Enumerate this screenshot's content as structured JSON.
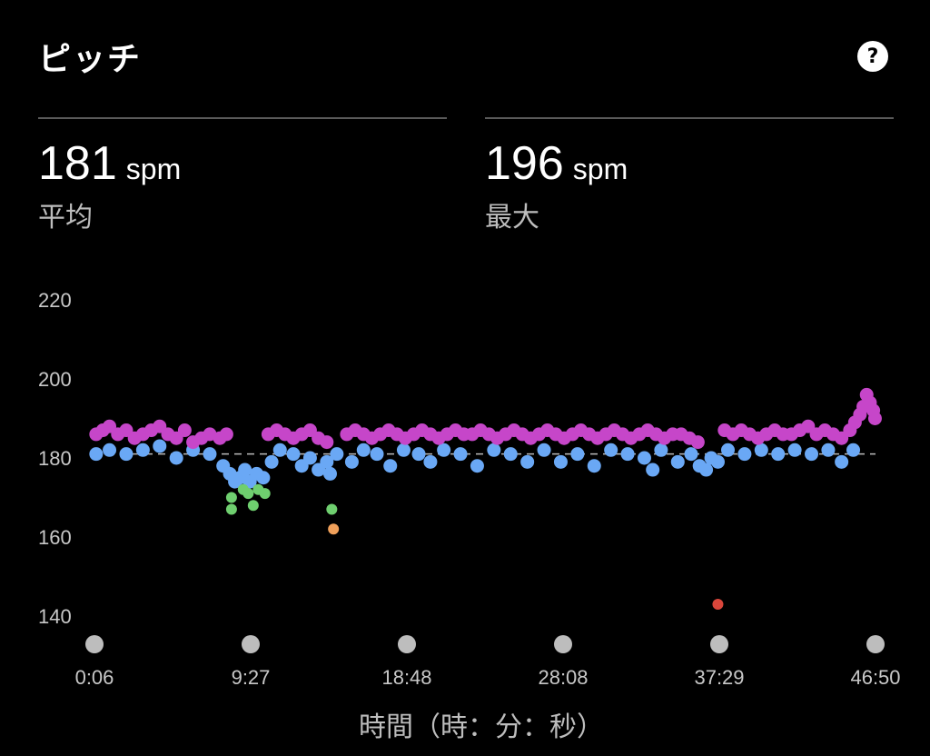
{
  "header": {
    "title": "ピッチ",
    "help_icon": "question-circle-icon",
    "help_label": "?"
  },
  "stats": [
    {
      "value": "181",
      "unit": "spm",
      "label": "平均"
    },
    {
      "value": "196",
      "unit": "spm",
      "label": "最大"
    }
  ],
  "chart_data": {
    "type": "scatter",
    "title": "",
    "xlabel": "時間（時：分：秒）",
    "ylabel": "",
    "y_ticks": [
      140,
      160,
      180,
      200,
      220
    ],
    "ylim": [
      136,
      224
    ],
    "x_ticks": [
      "0:06",
      "9:27",
      "18:48",
      "28:08",
      "37:29",
      "46:50"
    ],
    "xlim_minutes": [
      0.1,
      46.83
    ],
    "average_line": 181,
    "grid": false,
    "legend": "none",
    "colors": {
      "magenta": "#c646c9",
      "blue": "#6aa8f5",
      "green": "#6fcf6f",
      "orange": "#f0a05a",
      "red": "#d9463b",
      "avg_line": "#bbbbbb",
      "tick_dot": "#bdbdbd"
    },
    "series": [
      {
        "color_key": "magenta",
        "points": [
          [
            0.2,
            186
          ],
          [
            0.6,
            187
          ],
          [
            1.0,
            188
          ],
          [
            1.5,
            186
          ],
          [
            2.0,
            187
          ],
          [
            2.5,
            185
          ],
          [
            3.0,
            186
          ],
          [
            3.5,
            187
          ],
          [
            4.0,
            188
          ],
          [
            4.5,
            186
          ],
          [
            5.0,
            185
          ],
          [
            5.5,
            187
          ],
          [
            6.0,
            184
          ],
          [
            6.5,
            185
          ],
          [
            7.0,
            186
          ],
          [
            7.6,
            185
          ],
          [
            8.0,
            186
          ],
          [
            10.5,
            186
          ],
          [
            11.0,
            187
          ],
          [
            11.5,
            186
          ],
          [
            12.0,
            185
          ],
          [
            12.5,
            186
          ],
          [
            13.0,
            187
          ],
          [
            13.5,
            185
          ],
          [
            14.0,
            184
          ],
          [
            15.2,
            186
          ],
          [
            15.7,
            187
          ],
          [
            16.2,
            186
          ],
          [
            16.7,
            185
          ],
          [
            17.2,
            186
          ],
          [
            17.7,
            187
          ],
          [
            18.2,
            186
          ],
          [
            18.7,
            185
          ],
          [
            19.2,
            186
          ],
          [
            19.7,
            187
          ],
          [
            20.2,
            186
          ],
          [
            20.7,
            185
          ],
          [
            21.2,
            186
          ],
          [
            21.7,
            187
          ],
          [
            22.2,
            186
          ],
          [
            22.7,
            186
          ],
          [
            23.2,
            187
          ],
          [
            23.7,
            186
          ],
          [
            24.2,
            185
          ],
          [
            24.7,
            186
          ],
          [
            25.2,
            187
          ],
          [
            25.7,
            186
          ],
          [
            26.2,
            185
          ],
          [
            26.7,
            186
          ],
          [
            27.2,
            187
          ],
          [
            27.7,
            186
          ],
          [
            28.2,
            185
          ],
          [
            28.7,
            186
          ],
          [
            29.2,
            187
          ],
          [
            29.7,
            186
          ],
          [
            30.2,
            185
          ],
          [
            30.7,
            186
          ],
          [
            31.2,
            187
          ],
          [
            31.7,
            186
          ],
          [
            32.2,
            185
          ],
          [
            32.7,
            186
          ],
          [
            33.2,
            187
          ],
          [
            33.7,
            186
          ],
          [
            34.2,
            185
          ],
          [
            34.7,
            186
          ],
          [
            35.2,
            186
          ],
          [
            35.7,
            185
          ],
          [
            36.2,
            184
          ],
          [
            37.8,
            187
          ],
          [
            38.3,
            186
          ],
          [
            38.8,
            187
          ],
          [
            39.3,
            186
          ],
          [
            39.8,
            185
          ],
          [
            40.3,
            186
          ],
          [
            40.8,
            187
          ],
          [
            41.3,
            186
          ],
          [
            41.8,
            186
          ],
          [
            42.3,
            187
          ],
          [
            42.8,
            188
          ],
          [
            43.3,
            186
          ],
          [
            43.8,
            187
          ],
          [
            44.3,
            186
          ],
          [
            44.8,
            185
          ],
          [
            45.3,
            187
          ],
          [
            45.6,
            189
          ],
          [
            45.9,
            191
          ],
          [
            46.1,
            193
          ],
          [
            46.3,
            196
          ],
          [
            46.5,
            194
          ],
          [
            46.7,
            192
          ],
          [
            46.8,
            190
          ]
        ]
      },
      {
        "color_key": "blue",
        "points": [
          [
            0.2,
            181
          ],
          [
            1.0,
            182
          ],
          [
            2.0,
            181
          ],
          [
            3.0,
            182
          ],
          [
            4.0,
            183
          ],
          [
            5.0,
            180
          ],
          [
            6.0,
            182
          ],
          [
            7.0,
            181
          ],
          [
            7.8,
            178
          ],
          [
            8.2,
            176
          ],
          [
            8.5,
            174
          ],
          [
            8.8,
            175
          ],
          [
            9.1,
            177
          ],
          [
            9.4,
            174
          ],
          [
            9.8,
            176
          ],
          [
            10.2,
            175
          ],
          [
            10.7,
            179
          ],
          [
            11.2,
            182
          ],
          [
            12.0,
            181
          ],
          [
            12.5,
            178
          ],
          [
            13.0,
            180
          ],
          [
            13.5,
            177
          ],
          [
            14.0,
            179
          ],
          [
            14.2,
            176
          ],
          [
            14.6,
            181
          ],
          [
            15.5,
            179
          ],
          [
            16.2,
            182
          ],
          [
            17.0,
            181
          ],
          [
            17.8,
            178
          ],
          [
            18.6,
            182
          ],
          [
            19.5,
            181
          ],
          [
            20.2,
            179
          ],
          [
            21.0,
            182
          ],
          [
            22.0,
            181
          ],
          [
            23.0,
            178
          ],
          [
            24.0,
            182
          ],
          [
            25.0,
            181
          ],
          [
            26.0,
            179
          ],
          [
            27.0,
            182
          ],
          [
            28.0,
            179
          ],
          [
            29.0,
            181
          ],
          [
            30.0,
            178
          ],
          [
            31.0,
            182
          ],
          [
            32.0,
            181
          ],
          [
            33.0,
            180
          ],
          [
            33.5,
            177
          ],
          [
            34.0,
            182
          ],
          [
            35.0,
            179
          ],
          [
            35.8,
            181
          ],
          [
            36.3,
            178
          ],
          [
            36.7,
            177
          ],
          [
            37.0,
            180
          ],
          [
            37.4,
            179
          ],
          [
            38.0,
            182
          ],
          [
            39.0,
            181
          ],
          [
            40.0,
            182
          ],
          [
            41.0,
            181
          ],
          [
            42.0,
            182
          ],
          [
            43.0,
            181
          ],
          [
            44.0,
            182
          ],
          [
            44.8,
            179
          ],
          [
            45.5,
            182
          ]
        ]
      },
      {
        "color_key": "green",
        "points": [
          [
            8.3,
            170
          ],
          [
            8.3,
            167
          ],
          [
            9.0,
            172
          ],
          [
            9.3,
            171
          ],
          [
            9.6,
            168
          ],
          [
            9.9,
            172
          ],
          [
            10.3,
            171
          ],
          [
            14.3,
            167
          ]
        ]
      },
      {
        "color_key": "orange",
        "points": [
          [
            14.4,
            162
          ]
        ]
      },
      {
        "color_key": "red",
        "points": [
          [
            37.4,
            143
          ]
        ]
      }
    ]
  }
}
